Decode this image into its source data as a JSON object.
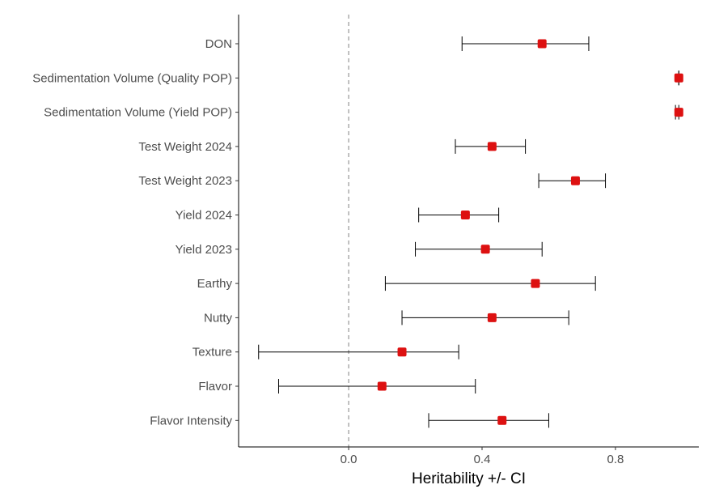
{
  "chart_data": {
    "type": "forest",
    "orientation": "horizontal",
    "xlabel": "Heritability +/- CI",
    "ylabel": "",
    "title": "",
    "xlim": [
      -0.33,
      1.05
    ],
    "xticks": [
      0.0,
      0.4,
      0.8
    ],
    "xtick_labels": [
      "0.0",
      "0.4",
      "0.8"
    ],
    "reference_line": {
      "x": 0.0,
      "style": "dashed"
    },
    "grid": false,
    "legend": "none",
    "point_color": "#dd1111",
    "error_bar_color": "#000000",
    "categories": [
      "DON",
      "Sedimentation Volume (Quality POP)",
      "Sedimentation Volume (Yield POP)",
      "Test Weight 2024",
      "Test Weight 2023",
      "Yield 2024",
      "Yield 2023",
      "Earthy",
      "Nutty",
      "Texture",
      "Flavor",
      "Flavor Intensity"
    ],
    "estimates": [
      0.58,
      0.99,
      0.99,
      0.43,
      0.68,
      0.35,
      0.41,
      0.56,
      0.43,
      0.16,
      0.1,
      0.46
    ],
    "lower": [
      0.34,
      0.99,
      0.98,
      0.32,
      0.57,
      0.21,
      0.2,
      0.11,
      0.16,
      -0.27,
      -0.21,
      0.24
    ],
    "upper": [
      0.72,
      0.99,
      0.99,
      0.53,
      0.77,
      0.45,
      0.58,
      0.74,
      0.66,
      0.33,
      0.38,
      0.6
    ]
  }
}
